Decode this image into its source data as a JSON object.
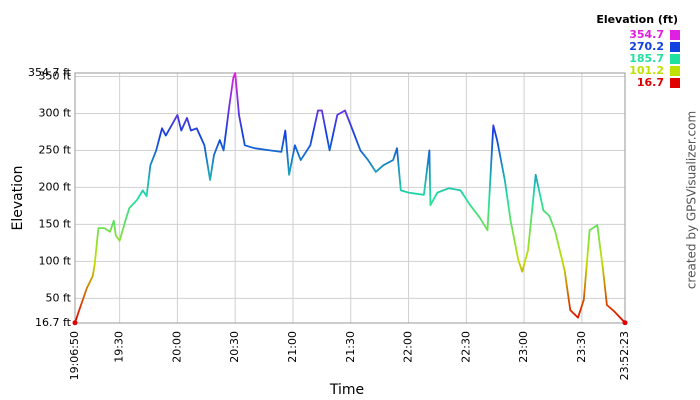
{
  "chart_data": {
    "type": "line",
    "x_label": "Time",
    "y_label": "Elevation",
    "credit": "created by GPSVisualizer.com",
    "legend_title": "Elevation (ft)",
    "color_scale": [
      {
        "value": 354.7,
        "color": "#e020e0"
      },
      {
        "value": 270.2,
        "color": "#1040e0"
      },
      {
        "value": 185.7,
        "color": "#20e0a0"
      },
      {
        "value": 101.2,
        "color": "#c0e000"
      },
      {
        "value": 16.7,
        "color": "#e00000"
      }
    ],
    "x": [
      "19:06:50",
      "19:09:00",
      "19:13:00",
      "19:16:00",
      "19:17:00",
      "19:19:00",
      "19:22:00",
      "19:25:00",
      "19:27:00",
      "19:28:00",
      "19:30:00",
      "19:33:00",
      "19:35:00",
      "19:39:00",
      "19:42:00",
      "19:44:00",
      "19:46:00",
      "19:49:00",
      "19:52:00",
      "19:54:00",
      "19:57:00",
      "20:00:00",
      "20:02:00",
      "20:05:00",
      "20:07:00",
      "20:10:00",
      "20:14:00",
      "20:17:00",
      "20:19:00",
      "20:22:00",
      "20:24:00",
      "20:27:00",
      "20:29:00",
      "20:30:00",
      "20:32:00",
      "20:35:00",
      "20:40:00",
      "20:48:00",
      "20:54:00",
      "20:56:00",
      "20:58:00",
      "21:01:00",
      "21:04:00",
      "21:09:00",
      "21:13:00",
      "21:15:00",
      "21:19:00",
      "21:23:00",
      "21:27:00",
      "21:30:00",
      "21:35:00",
      "21:39:00",
      "21:43:00",
      "21:47:00",
      "21:52:00",
      "21:54:00",
      "21:56:00",
      "22:00:00",
      "22:08:00",
      "22:10:50",
      "22:11:20",
      "22:15:00",
      "22:21:00",
      "22:27:00",
      "22:32:00",
      "22:37:00",
      "22:41:00",
      "22:44:00",
      "22:46:00",
      "22:50:00",
      "22:53:00",
      "22:57:00",
      "22:59:00",
      "23:02:00",
      "23:06:00",
      "23:10:00",
      "23:13:00",
      "23:16:00",
      "23:21:00",
      "23:24:00",
      "23:28:00",
      "23:31:00",
      "23:34:00",
      "23:38:00",
      "23:41:00",
      "23:43:00",
      "23:47:00",
      "23:52:23"
    ],
    "values": [
      17,
      34,
      64,
      80,
      95,
      145,
      145,
      140,
      155,
      135,
      128,
      155,
      172,
      183,
      196,
      188,
      230,
      250,
      280,
      270,
      284,
      298,
      277,
      294,
      277,
      280,
      257,
      210,
      244,
      264,
      250,
      311,
      348,
      354.7,
      298,
      257,
      253,
      250,
      248,
      277,
      217,
      257,
      237,
      257,
      304,
      304,
      250,
      298,
      304,
      284,
      250,
      237,
      221,
      230,
      237,
      253,
      196,
      193,
      190,
      250,
      176,
      193,
      199,
      196,
      176,
      159,
      142,
      284,
      264,
      210,
      155,
      102,
      86,
      115,
      217,
      169,
      162,
      142,
      88,
      34,
      24,
      48,
      142,
      149,
      88,
      41,
      32,
      17
    ],
    "xlim": [
      "19:06:50",
      "23:52:23"
    ],
    "xticks": [
      "19:06:50",
      "19:30",
      "20:00",
      "20:30",
      "21:00",
      "21:30",
      "22:00",
      "22:30",
      "23:00",
      "23:30",
      "23:52:23"
    ],
    "ylim": [
      16.7,
      354.7
    ],
    "yticks": [
      {
        "value": 16.7,
        "label": "16.7 ft"
      },
      {
        "value": 50,
        "label": "50 ft"
      },
      {
        "value": 100,
        "label": "100 ft"
      },
      {
        "value": 150,
        "label": "150 ft"
      },
      {
        "value": 200,
        "label": "200 ft"
      },
      {
        "value": 250,
        "label": "250 ft"
      },
      {
        "value": 300,
        "label": "300 ft"
      },
      {
        "value": 350,
        "label": "350 ft"
      },
      {
        "value": 354.7,
        "label": "354.7 ft"
      }
    ],
    "grid": true
  }
}
